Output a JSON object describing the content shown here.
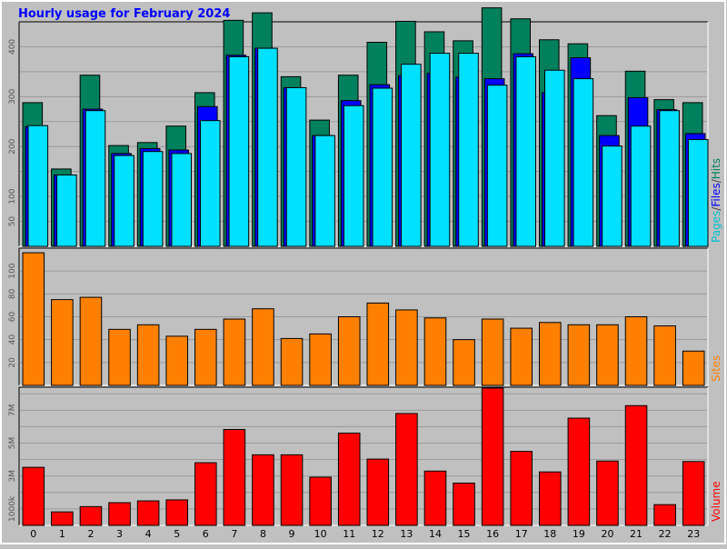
{
  "chart_data": {
    "title": "Hourly usage for February 2024",
    "type": "bar",
    "categories": [
      "0",
      "1",
      "2",
      "3",
      "4",
      "5",
      "6",
      "7",
      "8",
      "9",
      "10",
      "11",
      "12",
      "13",
      "14",
      "15",
      "16",
      "17",
      "18",
      "19",
      "20",
      "21",
      "22",
      "23"
    ],
    "colors": {
      "hits": "#00805c",
      "files": "#0000ff",
      "pages": "#00e0ff",
      "sites": "#ff8000",
      "volume": "#ff0000",
      "background": "#c0c0c0",
      "grid": "#a8a8a8"
    },
    "panels": [
      {
        "id": "hits-files-pages",
        "ylabel_parts": [
          {
            "text": "Pages",
            "color": "#00c0d0"
          },
          {
            "text": "/",
            "color": "#404040"
          },
          {
            "text": "Files",
            "color": "#0000ff"
          },
          {
            "text": "/",
            "color": "#404040"
          },
          {
            "text": "Hits",
            "color": "#00805c"
          }
        ],
        "ylim": [
          0,
          450
        ],
        "yticks": [
          {
            "value": 50,
            "label": "50"
          },
          {
            "value": 100,
            "label": "100"
          },
          {
            "value": 200,
            "label": "200"
          },
          {
            "value": 300,
            "label": "300"
          },
          {
            "value": 400,
            "label": "400"
          }
        ],
        "gridlines": [
          50,
          100,
          150,
          200,
          250,
          300,
          350,
          400
        ],
        "series": [
          {
            "name": "Hits",
            "color": "#00805c",
            "values": [
              288,
              155,
              343,
              202,
              208,
              241,
              308,
              453,
              468,
              340,
              253,
              343,
              409,
              451,
              430,
              412,
              478,
              456,
              414,
              406,
              262,
              351,
              294,
              288
            ]
          },
          {
            "name": "Files",
            "color": "#0000ff",
            "values": [
              240,
              143,
              275,
              186,
              196,
              193,
              280,
              383,
              397,
              318,
              222,
              292,
              324,
              342,
              347,
              339,
              336,
              386,
              308,
              378,
              222,
              298,
              274,
              226
            ]
          },
          {
            "name": "Pages",
            "color": "#00e0ff",
            "values": [
              242,
              143,
              272,
              182,
              190,
              186,
              252,
              380,
              397,
              318,
              222,
              282,
              317,
              365,
              387,
              387,
              323,
              380,
              353,
              336,
              201,
              241,
              272,
              214
            ]
          }
        ]
      },
      {
        "id": "sites",
        "ylabel_parts": [
          {
            "text": "Sites",
            "color": "#ff8000"
          }
        ],
        "ylim": [
          0,
          120
        ],
        "yticks": [
          {
            "value": 20,
            "label": "20"
          },
          {
            "value": 40,
            "label": "40"
          },
          {
            "value": 60,
            "label": "60"
          },
          {
            "value": 80,
            "label": "80"
          },
          {
            "value": 100,
            "label": "100"
          }
        ],
        "gridlines": [
          20,
          40,
          60,
          80,
          100
        ],
        "series": [
          {
            "name": "Sites",
            "color": "#ff8000",
            "values": [
              116,
              75,
              77,
              49,
              53,
              43,
              49,
              58,
              67,
              41,
              45,
              60,
              72,
              66,
              59,
              40,
              58,
              50,
              55,
              53,
              53,
              60,
              52,
              30
            ]
          }
        ]
      },
      {
        "id": "volume",
        "ylabel_parts": [
          {
            "text": "Volume",
            "color": "#ff0000"
          }
        ],
        "ylim": [
          0,
          8400000
        ],
        "yticks": [
          {
            "value": 1000000,
            "label": "1000k"
          },
          {
            "value": 3000000,
            "label": "3M"
          },
          {
            "value": 5000000,
            "label": "5M"
          },
          {
            "value": 7000000,
            "label": "7M"
          }
        ],
        "gridlines": [
          1000000,
          2000000,
          3000000,
          4000000,
          5000000,
          6000000,
          7000000,
          8000000
        ],
        "series": [
          {
            "name": "Volume",
            "color": "#ff0000",
            "values": [
              3530000,
              820000,
              1140000,
              1380000,
              1490000,
              1550000,
              3810000,
              5830000,
              4290000,
              4290000,
              2930000,
              5610000,
              4030000,
              6800000,
              3300000,
              2570000,
              8350000,
              4500000,
              3250000,
              6520000,
              3910000,
              7280000,
              1260000,
              3880000
            ]
          }
        ]
      }
    ]
  }
}
